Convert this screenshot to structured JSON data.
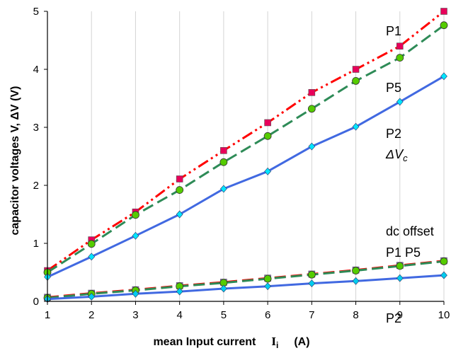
{
  "chart_data": {
    "type": "line",
    "xlabel": "mean Input current",
    "xlabel_symbol": "I",
    "xlabel_subscript": "i",
    "xlabel_unit": "(A)",
    "ylabel": "capacitor voltages  V, ΔV   (V)",
    "xlim": [
      1,
      10
    ],
    "ylim": [
      0,
      5
    ],
    "x_ticks": [
      1,
      2,
      3,
      4,
      5,
      6,
      7,
      8,
      9,
      10
    ],
    "y_ticks": [
      0,
      1,
      2,
      3,
      4,
      5
    ],
    "grid": "vertical",
    "legend": "none",
    "series": [
      {
        "name": "P1",
        "group": "ΔVc",
        "color": "#ff0000",
        "dash": "dash-dot-dot",
        "marker": "square",
        "marker_color": "#e8005a",
        "x": [
          1,
          2,
          3,
          4,
          5,
          6,
          7,
          8,
          9,
          10
        ],
        "y": [
          0.53,
          1.06,
          1.54,
          2.11,
          2.6,
          3.08,
          3.6,
          4.0,
          4.4,
          5.0
        ]
      },
      {
        "name": "P5",
        "group": "ΔVc",
        "color": "#2e8b57",
        "dash": "dash",
        "marker": "circle",
        "marker_color": "#55cc00",
        "x": [
          1,
          2,
          3,
          4,
          5,
          6,
          7,
          8,
          9,
          10
        ],
        "y": [
          0.5,
          0.99,
          1.49,
          1.92,
          2.4,
          2.85,
          3.32,
          3.8,
          4.2,
          4.76
        ]
      },
      {
        "name": "P2",
        "group": "ΔVc",
        "color": "#4169e1",
        "dash": "solid",
        "marker": "diamond",
        "marker_color": "#00e5ff",
        "x": [
          1,
          2,
          3,
          4,
          5,
          6,
          7,
          8,
          9,
          10
        ],
        "y": [
          0.42,
          0.77,
          1.13,
          1.5,
          1.94,
          2.24,
          2.67,
          3.01,
          3.44,
          3.88
        ]
      },
      {
        "name": "P1",
        "group": "dc offset",
        "color": "#ff0000",
        "dash": "dash",
        "marker": "square",
        "marker_color": "#9370db",
        "x": [
          1,
          2,
          3,
          4,
          5,
          6,
          7,
          8,
          9,
          10
        ],
        "y": [
          0.07,
          0.14,
          0.2,
          0.27,
          0.33,
          0.4,
          0.47,
          0.54,
          0.62,
          0.7
        ]
      },
      {
        "name": "P5",
        "group": "dc offset",
        "color": "#2e8b57",
        "dash": "dash",
        "marker": "circle",
        "marker_color": "#55cc00",
        "x": [
          1,
          2,
          3,
          4,
          5,
          6,
          7,
          8,
          9,
          10
        ],
        "y": [
          0.06,
          0.13,
          0.19,
          0.26,
          0.32,
          0.39,
          0.46,
          0.53,
          0.61,
          0.69
        ]
      },
      {
        "name": "P2",
        "group": "dc offset",
        "color": "#4169e1",
        "dash": "solid",
        "marker": "diamond",
        "marker_color": "#00ccee",
        "x": [
          1,
          2,
          3,
          4,
          5,
          6,
          7,
          8,
          9,
          10
        ],
        "y": [
          0.04,
          0.08,
          0.13,
          0.17,
          0.22,
          0.26,
          0.31,
          0.35,
          0.4,
          0.45
        ]
      }
    ]
  },
  "annotations": {
    "dv_p1": "P1",
    "dv_p5": "P5",
    "dv_p2": "P2",
    "dv_label": "ΔV",
    "dv_label_sub": "c",
    "dc_offset": "dc offset",
    "dc_p1_p5": "P1 P5",
    "dc_p2": "P2"
  }
}
